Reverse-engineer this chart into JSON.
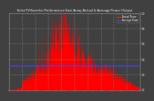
{
  "title": "Solar PV/Inverter Performance East Array Actual & Average Power Output",
  "bg_color": "#404040",
  "plot_bg": "#404040",
  "bar_color": "#ff0000",
  "avg_line_color": "#4444ff",
  "avg_value": 0.32,
  "ylim": [
    0,
    1.0
  ],
  "n_points": 300,
  "legend_labels": [
    "Actual Power",
    "Average Power"
  ],
  "legend_colors": [
    "#ff2200",
    "#4444ff"
  ],
  "grid_color": "#888888",
  "text_color": "#ffffff",
  "spine_color": "#888888"
}
